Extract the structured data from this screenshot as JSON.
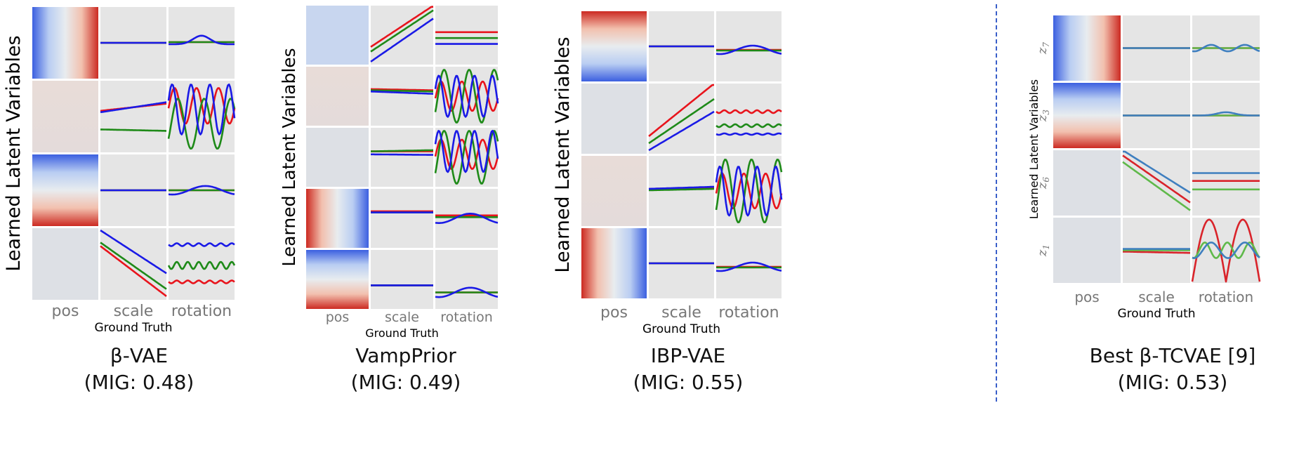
{
  "chart_data": [
    {
      "type": "line",
      "name": "β-VAE",
      "rows": [
        "",
        "",
        "",
        ""
      ],
      "columns": [
        "pos",
        "scale",
        "rotation"
      ],
      "ylabel": "Learned Latent Variables",
      "xlabel": "Ground Truth",
      "caption": [
        "β-VAE",
        "(MIG: 0.48)"
      ],
      "pos_maps": [
        "h-blue-red",
        "faint-pink",
        "v-blue-red",
        "faint"
      ],
      "cells": [
        {
          "scale": {
            "red": [
              0.5,
              0.5
            ],
            "green": [
              0.5,
              0.5
            ],
            "blue": [
              0.5,
              0.5
            ]
          },
          "rotation": {
            "red": [
              0.49,
              0.49
            ],
            "green": [
              0.49,
              0.49
            ],
            "blue": [
              "bump",
              0.52,
              0.4
            ]
          }
        },
        {
          "scale": {
            "red": [
              0.42,
              0.32
            ],
            "green": [
              0.68,
              0.7
            ],
            "blue": [
              0.44,
              0.3
            ]
          },
          "rotation": {
            "red": [
              "osc",
              0.35,
              0.25,
              3.0
            ],
            "green": [
              "osc",
              0.6,
              0.35,
              2.5
            ],
            "blue": [
              "osc",
              0.4,
              0.35,
              3.5
            ]
          }
        },
        {
          "scale": {
            "red": [
              0.5,
              0.5
            ],
            "green": [
              0.5,
              0.5
            ],
            "blue": [
              0.5,
              0.5
            ]
          },
          "rotation": {
            "red": [
              0.5,
              0.5
            ],
            "green": [
              0.5,
              0.5
            ],
            "blue": [
              "wave",
              0.5,
              0.06,
              1.0
            ]
          }
        },
        {
          "scale": {
            "red": [
              0.25,
              0.95
            ],
            "green": [
              0.2,
              0.85
            ],
            "blue": [
              0.03,
              0.63
            ]
          },
          "rotation": {
            "red": [
              "ripple",
              0.75,
              0.02
            ],
            "green": [
              "ripple",
              0.52,
              0.05
            ],
            "blue": [
              "ripple",
              0.23,
              0.02
            ]
          }
        }
      ]
    },
    {
      "type": "line",
      "name": "VampPrior",
      "rows": [
        "",
        "",
        "",
        "",
        ""
      ],
      "columns": [
        "pos",
        "scale",
        "rotation"
      ],
      "ylabel": "Learned Latent Variables",
      "xlabel": "Ground Truth",
      "caption": [
        "VampPrior",
        "(MIG: 0.49)"
      ],
      "pos_maps": [
        "faint-blue",
        "faint-pink",
        "faint",
        "h-red-blue",
        "v-blue-red"
      ],
      "cells": [
        {
          "scale": {
            "red": [
              0.7,
              0.0
            ],
            "green": [
              0.78,
              0.08
            ],
            "blue": [
              0.95,
              0.22
            ]
          },
          "rotation": {
            "red": [
              0.45,
              0.45
            ],
            "green": [
              0.55,
              0.55
            ],
            "blue": [
              0.65,
              0.65
            ]
          }
        },
        {
          "scale": {
            "red": [
              0.38,
              0.4
            ],
            "green": [
              0.4,
              0.42
            ],
            "blue": [
              0.42,
              0.46
            ]
          },
          "rotation": {
            "red": [
              "osc",
              0.5,
              0.25,
              3.0
            ],
            "green": [
              "osc",
              0.5,
              0.45,
              2.5
            ],
            "blue": [
              "osc",
              0.5,
              0.35,
              3.5
            ]
          }
        },
        {
          "scale": {
            "red": [
              0.4,
              0.4
            ],
            "green": [
              0.4,
              0.38
            ],
            "blue": [
              0.45,
              0.46
            ]
          },
          "rotation": {
            "red": [
              "osc",
              0.45,
              0.25,
              3.0
            ],
            "green": [
              "osc",
              0.5,
              0.45,
              2.5
            ],
            "blue": [
              "osc",
              0.4,
              0.35,
              3.5
            ]
          }
        },
        {
          "scale": {
            "red": [
              0.38,
              0.38
            ],
            "green": [
              0.4,
              0.4
            ],
            "blue": [
              0.4,
              0.4
            ]
          },
          "rotation": {
            "red": [
              0.45,
              0.45
            ],
            "green": [
              0.48,
              0.48
            ],
            "blue": [
              "wave",
              0.5,
              0.08,
              1.0
            ]
          }
        },
        {
          "scale": {
            "red": [
              0.6,
              0.6
            ],
            "green": [
              0.6,
              0.6
            ],
            "blue": [
              0.6,
              0.6
            ]
          },
          "rotation": {
            "red": [
              0.72,
              0.72
            ],
            "green": [
              0.72,
              0.72
            ],
            "blue": [
              "wave",
              0.72,
              0.08,
              1.0
            ]
          }
        }
      ]
    },
    {
      "type": "line",
      "name": "IBP-VAE",
      "rows": [
        "",
        "",
        "",
        ""
      ],
      "columns": [
        "pos",
        "scale",
        "rotation"
      ],
      "ylabel": "Learned Latent Variables",
      "xlabel": "Ground Truth",
      "caption": [
        "IBP-VAE",
        "(MIG: 0.55)"
      ],
      "pos_maps": [
        "v-red-blue",
        "faint",
        "faint-pink",
        "h-red-blue"
      ],
      "cells": [
        {
          "scale": {
            "red": [
              0.5,
              0.5
            ],
            "green": [
              0.5,
              0.5
            ],
            "blue": [
              0.5,
              0.5
            ]
          },
          "rotation": {
            "red": [
              0.55,
              0.55
            ],
            "green": [
              0.56,
              0.56
            ],
            "blue": [
              "wave",
              0.55,
              0.06,
              1.0
            ]
          }
        },
        {
          "scale": {
            "red": [
              0.75,
              0.0
            ],
            "green": [
              0.85,
              0.22
            ],
            "blue": [
              0.95,
              0.4
            ]
          },
          "rotation": {
            "red": [
              "ripple",
              0.4,
              0.02
            ],
            "green": [
              "ripple",
              0.6,
              0.02
            ],
            "blue": [
              "ripple",
              0.72,
              0.01
            ]
          }
        },
        {
          "scale": {
            "red": [
              0.47,
              0.45
            ],
            "green": [
              0.49,
              0.47
            ],
            "blue": [
              0.47,
              0.44
            ]
          },
          "rotation": {
            "red": [
              "osc",
              0.5,
              0.25,
              3.0
            ],
            "green": [
              "osc",
              0.5,
              0.45,
              2.5
            ],
            "blue": [
              "osc",
              0.5,
              0.35,
              3.5
            ]
          }
        },
        {
          "scale": {
            "red": [
              0.5,
              0.5
            ],
            "green": [
              0.5,
              0.5
            ],
            "blue": [
              0.5,
              0.5
            ]
          },
          "rotation": {
            "red": [
              0.55,
              0.55
            ],
            "green": [
              0.56,
              0.56
            ],
            "blue": [
              "wave",
              0.55,
              0.06,
              1.0
            ]
          }
        }
      ]
    },
    {
      "type": "line",
      "name": "Best β-TCVAE [9]",
      "rows": [
        "z7",
        "z3",
        "z6",
        "z1"
      ],
      "columns": [
        "pos",
        "scale",
        "rotation"
      ],
      "ylabel": "Learned Latent Variables",
      "xlabel": "Ground Truth",
      "caption": [
        "Best β-TCVAE [9]",
        "(MIG: 0.53)"
      ],
      "pos_maps": [
        "h-blue-red",
        "v-blue-red",
        "faint",
        "faint"
      ],
      "cells": [
        {
          "scale": {
            "red": [
              0.5,
              0.5
            ],
            "green": [
              0.5,
              0.5
            ],
            "blue": [
              0.5,
              0.5
            ]
          },
          "rotation": {
            "red": [
              0.5,
              0.5
            ],
            "green": [
              0.5,
              0.5
            ],
            "blue": [
              "wave",
              0.5,
              0.05,
              2.0
            ]
          }
        },
        {
          "scale": {
            "red": [
              0.5,
              0.5
            ],
            "green": [
              0.5,
              0.5
            ],
            "blue": [
              0.5,
              0.5
            ]
          },
          "rotation": {
            "red": [
              0.5,
              0.5
            ],
            "green": [
              0.5,
              0.5
            ],
            "blue": [
              "bump",
              0.5,
              0.45
            ]
          }
        },
        {
          "scale": {
            "red": [
              0.08,
              0.8
            ],
            "green": [
              0.18,
              0.92
            ],
            "blue": [
              0.0,
              0.65
            ]
          },
          "rotation": {
            "red": [
              0.47,
              0.47
            ],
            "green": [
              0.6,
              0.6
            ],
            "blue": [
              0.35,
              0.35
            ]
          }
        },
        {
          "scale": {
            "red": [
              0.52,
              0.54
            ],
            "green": [
              0.5,
              0.5
            ],
            "blue": [
              0.48,
              0.48
            ]
          },
          "rotation": {
            "red": [
              "arch",
              0.98,
              0.95
            ],
            "green": [
              "wave",
              0.5,
              0.12,
              3.0
            ],
            "blue": [
              "wave",
              0.5,
              0.12,
              2.0
            ]
          }
        }
      ]
    }
  ],
  "colors": {
    "cell_bg": "#e5e5e5",
    "red": "#e8141c",
    "green": "#1e8a18",
    "blue": "#1a1ae6",
    "tc_red": "#d9232a",
    "tc_green": "#5fb94a",
    "tc_blue": "#3f7fbf",
    "axis_text": "#777777",
    "divider": "#3a5fc9"
  }
}
